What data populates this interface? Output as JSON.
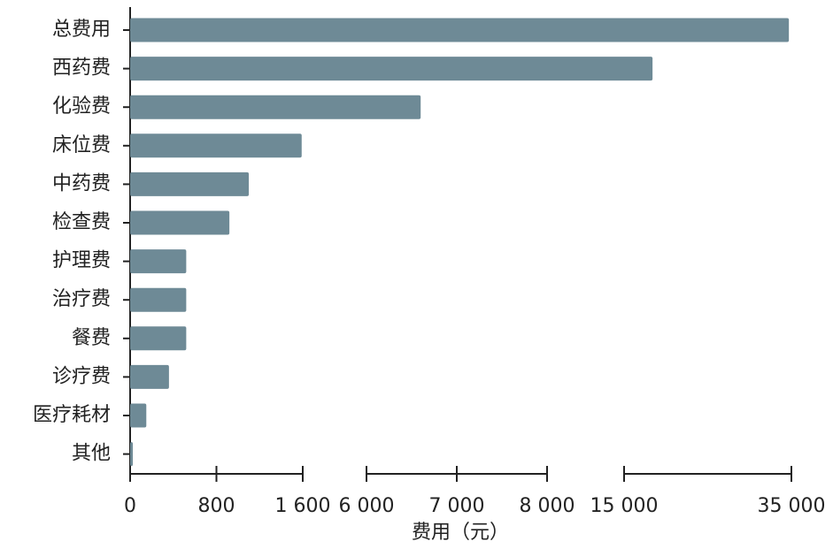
{
  "chart_data": {
    "type": "bar",
    "orientation": "horizontal",
    "categories": [
      "总费用",
      "西药费",
      "化验费",
      "床位费",
      "中药费",
      "检查费",
      "护理费",
      "治疗费",
      "餐费",
      "诊疗费",
      "医疗耗材",
      "其他"
    ],
    "values": [
      34700,
      18400,
      6600,
      1590,
      1100,
      920,
      520,
      520,
      520,
      360,
      150,
      25
    ],
    "color": "#6e8a96",
    "xlabel": "费用（元）",
    "x_segments": [
      {
        "xlim": [
          0,
          1600
        ],
        "xticks": [
          0,
          800,
          {
            "value": 1600,
            "label": "1 600"
          }
        ]
      },
      {
        "xlim": [
          6000,
          8000
        ],
        "xticks": [
          {
            "value": 6000,
            "label": "6 000"
          },
          {
            "value": 7000,
            "label": "7 000"
          },
          {
            "value": 8000,
            "label": "8 000"
          }
        ]
      },
      {
        "xlim": [
          15000,
          35000
        ],
        "xticks": [
          {
            "value": 15000,
            "label": "15 000"
          },
          {
            "value": 35000,
            "label": "35 000"
          }
        ]
      }
    ]
  }
}
